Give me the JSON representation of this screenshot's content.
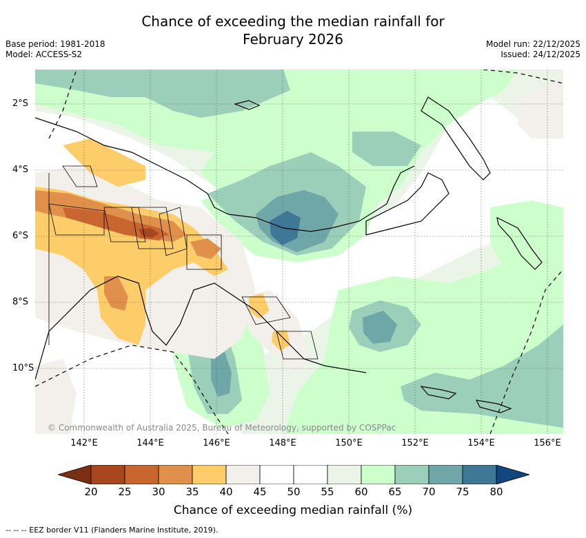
{
  "title": {
    "line1": "Chance of exceeding the median rainfall for",
    "line2": "February 2026"
  },
  "meta_left": {
    "base_period": "Base period: 1981-2018",
    "model": "Model: ACCESS-S2"
  },
  "meta_right": {
    "model_run": "Model run: 22/12/2025",
    "issued": "Issued: 24/12/2025"
  },
  "map": {
    "lat_labels": [
      "2°S",
      "4°S",
      "6°S",
      "8°S",
      "10°S"
    ],
    "lon_labels": [
      "142°E",
      "144°E",
      "146°E",
      "148°E",
      "150°E",
      "152°E",
      "154°E",
      "156°E"
    ],
    "copyright": "© Commonwealth of Australia 2025, Bureau of Meteorology, supported by COSPPac"
  },
  "colorbar": {
    "title": "Chance of exceeding median rainfall (%)",
    "ticks": [
      "20",
      "25",
      "30",
      "35",
      "40",
      "45",
      "50",
      "55",
      "60",
      "65",
      "70",
      "75",
      "80"
    ],
    "colors": {
      "below_20": "#7a2f12",
      "c20_25": "#a8471e",
      "c25_30": "#c9662f",
      "c30_35": "#e0904a",
      "c35_40": "#fdcd6a",
      "c40_45": "#f3efea",
      "c45_55": "#ffffff",
      "c55_60": "#eaf5e8",
      "c60_65": "#ccffcc",
      "c65_70": "#9ccfb9",
      "c70_75": "#6fa7a8",
      "c75_80": "#3f7896",
      "above_80": "#12467f"
    }
  },
  "footnote": "-- -- -- EEZ border V11 (Flanders Marine Institute, 2019)."
}
